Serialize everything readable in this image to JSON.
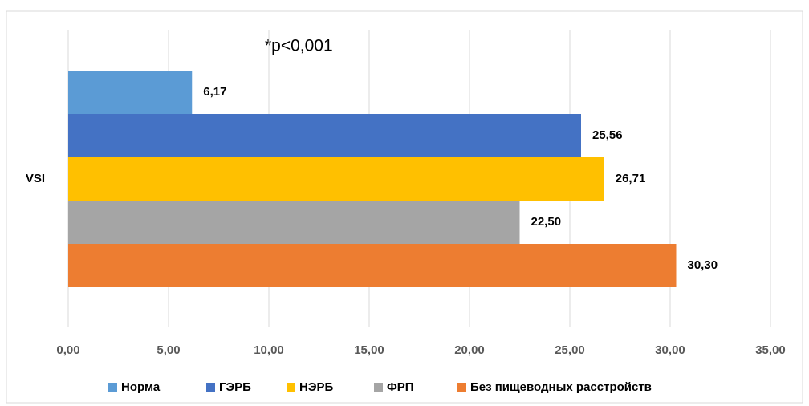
{
  "chart_data": {
    "type": "bar",
    "orientation": "horizontal",
    "annotation": "*p<0,001",
    "categories": [
      "VSI"
    ],
    "series": [
      {
        "name": "Норма",
        "color": "#5b9bd5",
        "values": [
          6.17
        ],
        "value_labels": [
          "6,17"
        ]
      },
      {
        "name": "ГЭРБ",
        "color": "#4472c4",
        "values": [
          25.56
        ],
        "value_labels": [
          "25,56"
        ]
      },
      {
        "name": "НЭРБ",
        "color": "#ffc000",
        "values": [
          26.71
        ],
        "value_labels": [
          "26,71"
        ]
      },
      {
        "name": "ФРП",
        "color": "#a5a5a5",
        "values": [
          22.5
        ],
        "value_labels": [
          "22,50"
        ]
      },
      {
        "name": "Без пищеводных расстройств",
        "color": "#ed7d31",
        "values": [
          30.3
        ],
        "value_labels": [
          "30,30"
        ]
      }
    ],
    "xlim": [
      0,
      35
    ],
    "xticks": [
      {
        "value": 0,
        "label": "0,00"
      },
      {
        "value": 5,
        "label": "5,00"
      },
      {
        "value": 10,
        "label": "10,00"
      },
      {
        "value": 15,
        "label": "15,00"
      },
      {
        "value": 20,
        "label": "20,00"
      },
      {
        "value": 25,
        "label": "25,00"
      },
      {
        "value": 30,
        "label": "30,00"
      },
      {
        "value": 35,
        "label": "35,00"
      }
    ],
    "grid": true,
    "legend": "bottom"
  }
}
